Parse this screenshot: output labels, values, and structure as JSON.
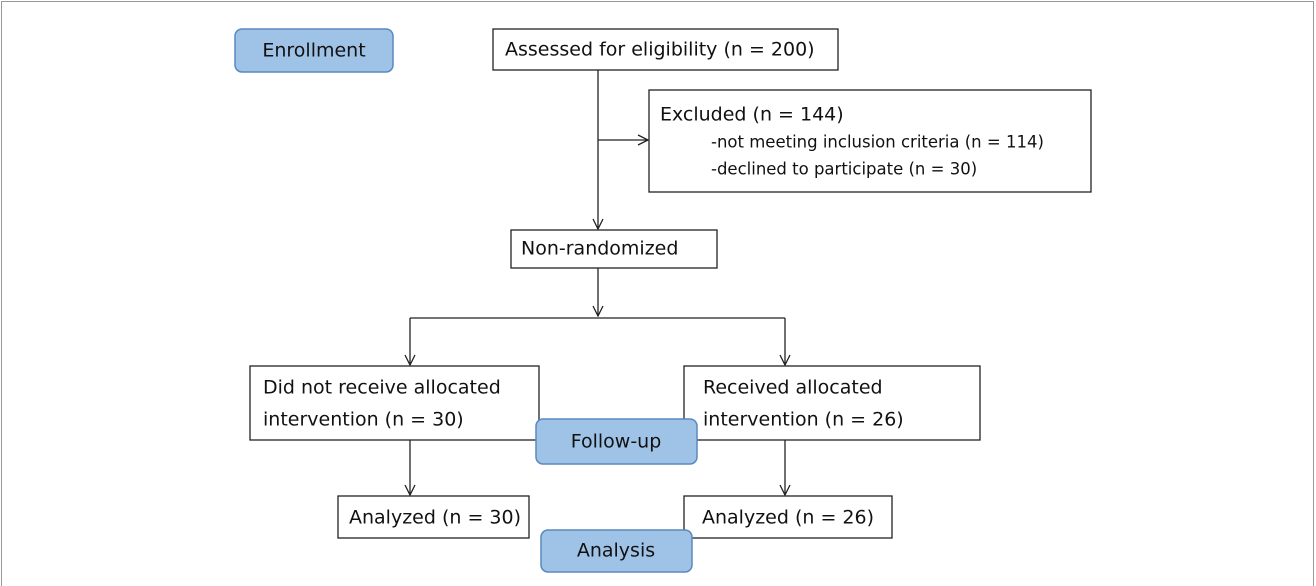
{
  "stages": [
    "Enrollment",
    "Follow-up",
    "Analysis"
  ],
  "nodes": [
    {
      "lines": [
        "Assessed for eligibility (n = 200)"
      ]
    },
    {
      "lines": [
        "Excluded (n = 144)",
        "-not meeting inclusion criteria (n = 114)",
        "-declined to participate (n = 30)"
      ]
    },
    {
      "lines": [
        "Non-randomized"
      ]
    },
    {
      "lines": [
        "Did not receive allocated",
        "intervention (n = 30)"
      ]
    },
    {
      "lines": [
        "Received allocated",
        "intervention (n = 26)"
      ]
    },
    {
      "lines": [
        "Analyzed (n = 30)"
      ]
    },
    {
      "lines": [
        "Analyzed (n = 26)"
      ]
    }
  ]
}
